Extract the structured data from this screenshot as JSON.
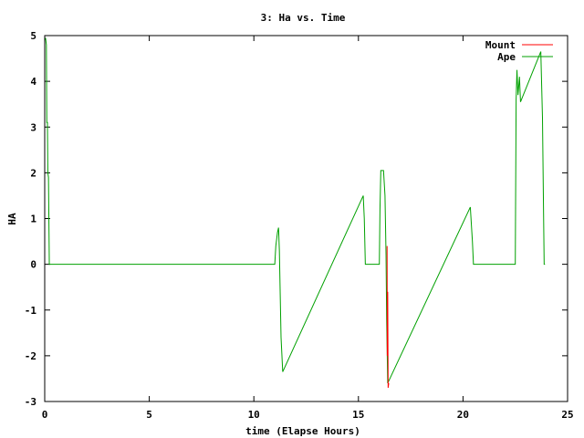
{
  "chart_data": {
    "type": "line",
    "title": "3: Ha vs. Time",
    "xlabel": "time (Elapse Hours)",
    "ylabel": "HA",
    "xlim": [
      0,
      25
    ],
    "ylim": [
      -3,
      5
    ],
    "xticks": [
      0,
      5,
      10,
      15,
      20,
      25
    ],
    "yticks": [
      -3,
      -2,
      -1,
      0,
      1,
      2,
      3,
      4,
      5
    ],
    "xtick_labels": [
      "0",
      "5",
      "10",
      "15",
      "20",
      "25"
    ],
    "ytick_labels": [
      "-3",
      "-2",
      "-1",
      "0",
      "1",
      "2",
      "3",
      "4",
      "5"
    ],
    "legend_position": "top-right",
    "series": [
      {
        "name": "Mount",
        "color": "#ff0000",
        "points": [
          [
            16.37,
            0.4
          ],
          [
            16.38,
            -2.0
          ],
          [
            16.4,
            -0.6
          ],
          [
            16.42,
            -2.7
          ],
          [
            16.45,
            -2.6
          ]
        ]
      },
      {
        "name": "Ape",
        "color": "#00a000",
        "points": [
          [
            0.0,
            4.9
          ],
          [
            0.04,
            4.95
          ],
          [
            0.08,
            4.8
          ],
          [
            0.1,
            3.1
          ],
          [
            0.13,
            3.1
          ],
          [
            0.15,
            2.0
          ],
          [
            0.18,
            1.9
          ],
          [
            0.22,
            0.0
          ],
          [
            11.0,
            0.0
          ],
          [
            11.05,
            0.4
          ],
          [
            11.13,
            0.7
          ],
          [
            11.18,
            0.8
          ],
          [
            11.22,
            0.3
          ],
          [
            11.3,
            -1.6
          ],
          [
            11.38,
            -2.35
          ],
          [
            15.23,
            1.5
          ],
          [
            15.28,
            1.0
          ],
          [
            15.33,
            0.0
          ],
          [
            16.0,
            0.0
          ],
          [
            16.03,
            1.2
          ],
          [
            16.07,
            2.05
          ],
          [
            16.2,
            2.05
          ],
          [
            16.27,
            1.5
          ],
          [
            16.32,
            0.2
          ],
          [
            16.35,
            -1.2
          ],
          [
            16.4,
            -2.6
          ],
          [
            20.35,
            1.25
          ],
          [
            20.45,
            0.5
          ],
          [
            20.5,
            0.0
          ],
          [
            22.5,
            0.0
          ],
          [
            22.54,
            3.6
          ],
          [
            22.58,
            4.25
          ],
          [
            22.63,
            3.7
          ],
          [
            22.7,
            4.1
          ],
          [
            22.75,
            3.55
          ],
          [
            23.72,
            4.65
          ],
          [
            23.8,
            3.2
          ],
          [
            23.85,
            1.2
          ],
          [
            23.88,
            0.0
          ],
          [
            23.92,
            0.0
          ]
        ]
      }
    ]
  }
}
